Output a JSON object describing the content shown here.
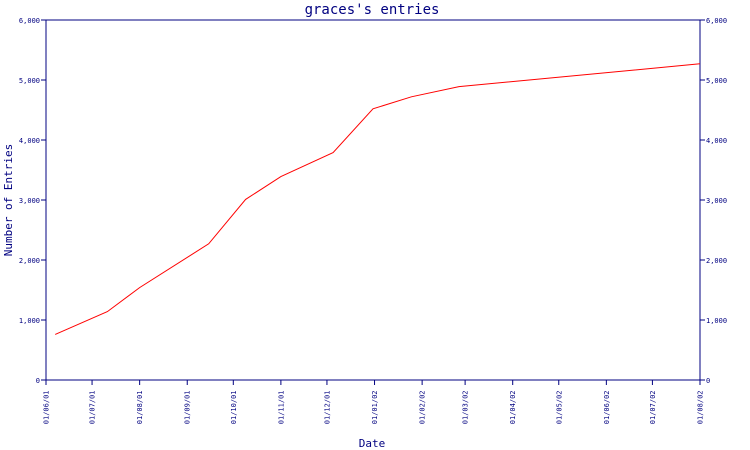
{
  "chart_data": {
    "type": "line",
    "title": "graces's entries",
    "xlabel": "Date",
    "ylabel": "Number of Entries",
    "ylim": [
      0,
      6000
    ],
    "y_ticks": [
      0,
      1000,
      2000,
      3000,
      4000,
      5000,
      6000
    ],
    "y_tick_labels": [
      "0",
      "1,000",
      "2,000",
      "3,000",
      "4,000",
      "5,000",
      "6,000"
    ],
    "right_axis": true,
    "x_ticks": [
      "2001-06-01",
      "2001-07-01",
      "2001-08-01",
      "2001-09-01",
      "2001-10-01",
      "2001-11-01",
      "2001-12-01",
      "2002-01-01",
      "2002-02-01",
      "2002-03-01",
      "2002-04-01",
      "2002-05-01",
      "2002-06-01",
      "2002-07-01",
      "2002-08-01"
    ],
    "x_tick_labels": [
      "01/06/01",
      "01/07/01",
      "01/08/01",
      "01/09/01",
      "01/10/01",
      "01/11/01",
      "01/12/01",
      "01/01/02",
      "01/02/02",
      "01/03/02",
      "01/04/02",
      "01/05/02",
      "01/06/02",
      "01/07/02",
      "01/08/02"
    ],
    "xlim": [
      "2001-06-01",
      "2002-08-01"
    ],
    "grid": false,
    "colors": {
      "axis": "#000080",
      "line": "#ff0000",
      "background": "#ffffff"
    },
    "series": [
      {
        "x": [
          "2001-06-07",
          "2001-07-11",
          "2001-08-01",
          "2001-09-15",
          "2001-10-09",
          "2001-11-01",
          "2001-12-05",
          "2001-12-31",
          "2002-01-25",
          "2002-02-25",
          "2002-08-01"
        ],
        "values": [
          760,
          1140,
          1540,
          2270,
          3010,
          3390,
          3790,
          4520,
          4720,
          4890,
          5270
        ]
      }
    ]
  }
}
